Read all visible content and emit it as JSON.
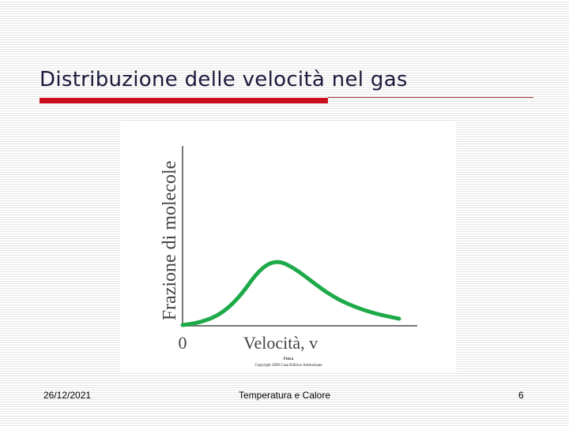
{
  "slide": {
    "title": "Distribuzione delle velocità nel gas"
  },
  "figure": {
    "y_label": "Frazione di molecole",
    "origin_label": "0",
    "x_label": "Velocità, v",
    "caption": "Fisica",
    "copyright": "Copyright 2009 Casa Editrice Ambrosiana"
  },
  "footer": {
    "date": "26/12/2021",
    "center": "Temperatura e Calore",
    "page": "6"
  }
}
